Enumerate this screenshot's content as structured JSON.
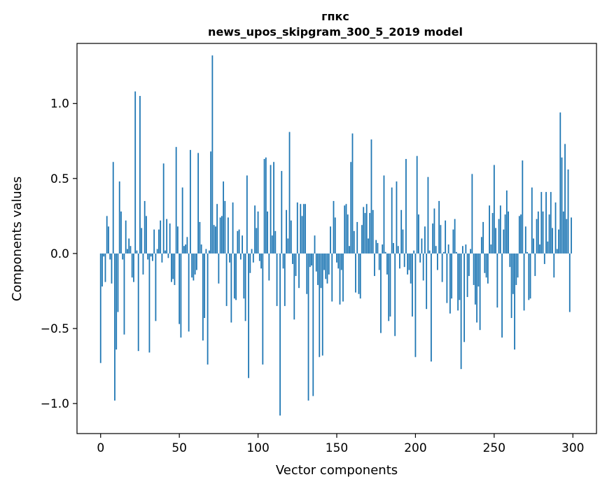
{
  "chart_data": {
    "type": "bar",
    "title_line1": "гпкс",
    "title_line2": "news_upos_skipgram_300_5_2019 model",
    "xlabel": "Vector components",
    "ylabel": "Components values",
    "xlim": [
      -15,
      315
    ],
    "ylim": [
      -1.2,
      1.4
    ],
    "xticks": [
      0,
      50,
      100,
      150,
      200,
      250,
      300
    ],
    "xtick_labels": [
      "0",
      "50",
      "100",
      "150",
      "200",
      "250",
      "300"
    ],
    "yticks": [
      -1.0,
      -0.5,
      0.0,
      0.5,
      1.0
    ],
    "ytick_labels": [
      "−1.0",
      "−0.5",
      "0.0",
      "0.5",
      "1.0"
    ],
    "bar_color": "#1f77b4",
    "grid": false,
    "legend": "none",
    "values": [
      -0.73,
      -0.22,
      -0.02,
      -0.19,
      0.25,
      0.18,
      -0.04,
      -0.2,
      0.61,
      -0.98,
      -0.64,
      -0.39,
      0.48,
      0.28,
      -0.04,
      -0.54,
      0.22,
      0.03,
      0.1,
      0.05,
      -0.16,
      -0.19,
      1.08,
      0.02,
      -0.65,
      1.05,
      0.17,
      -0.14,
      0.35,
      0.25,
      -0.04,
      -0.66,
      -0.02,
      -0.05,
      0.16,
      -0.45,
      0.03,
      0.16,
      0.22,
      -0.06,
      0.6,
      0.02,
      0.23,
      -0.03,
      0.2,
      -0.19,
      -0.17,
      -0.21,
      0.71,
      0.18,
      -0.47,
      -0.56,
      0.44,
      0.05,
      0.06,
      0.11,
      -0.52,
      0.69,
      -0.16,
      -0.18,
      -0.14,
      -0.11,
      0.67,
      0.21,
      0.06,
      -0.58,
      -0.43,
      0.03,
      -0.74,
      0.02,
      0.68,
      1.32,
      0.19,
      0.18,
      0.33,
      -0.2,
      0.24,
      0.25,
      0.48,
      0.35,
      -0.35,
      0.24,
      -0.06,
      -0.46,
      0.34,
      -0.3,
      -0.31,
      0.15,
      0.16,
      -0.04,
      0.12,
      -0.3,
      -0.45,
      0.52,
      -0.83,
      -0.13,
      0.03,
      -0.06,
      0.32,
      0.17,
      0.28,
      -0.05,
      -0.1,
      -0.74,
      0.63,
      0.64,
      0.28,
      -0.18,
      0.59,
      0.12,
      0.61,
      0.15,
      -0.35,
      0.0,
      -1.08,
      0.55,
      -0.1,
      -0.35,
      0.29,
      0.1,
      0.81,
      0.22,
      -0.07,
      -0.44,
      -0.15,
      0.34,
      -0.23,
      0.33,
      0.25,
      0.33,
      0.33,
      -0.27,
      -0.98,
      -0.09,
      -0.08,
      -0.95,
      0.12,
      -0.12,
      -0.21,
      -0.69,
      -0.23,
      -0.68,
      -0.11,
      -0.17,
      -0.2,
      -0.14,
      0.18,
      -0.32,
      0.35,
      0.24,
      -0.06,
      -0.1,
      -0.34,
      -0.11,
      -0.32,
      0.32,
      0.33,
      0.26,
      0.05,
      0.61,
      0.8,
      0.15,
      -0.26,
      0.21,
      -0.27,
      -0.3,
      0.19,
      0.31,
      0.27,
      0.33,
      0.1,
      0.27,
      0.76,
      0.29,
      -0.15,
      0.09,
      0.07,
      -0.11,
      -0.53,
      0.06,
      0.52,
      0.01,
      -0.14,
      -0.45,
      -0.42,
      0.44,
      0.07,
      -0.55,
      0.48,
      0.05,
      -0.1,
      0.29,
      0.16,
      -0.09,
      0.63,
      -0.14,
      -0.11,
      -0.2,
      -0.42,
      0.02,
      -0.69,
      0.65,
      0.26,
      -0.06,
      0.1,
      -0.18,
      0.18,
      -0.37,
      0.51,
      0.02,
      -0.72,
      0.2,
      0.3,
      0.05,
      -0.11,
      0.35,
      0.19,
      -0.19,
      0.01,
      0.22,
      -0.33,
      0.06,
      -0.4,
      -0.3,
      0.16,
      0.23,
      0.01,
      -0.38,
      -0.31,
      -0.77,
      0.05,
      -0.59,
      0.06,
      -0.29,
      -0.15,
      0.03,
      0.53,
      -0.21,
      -0.34,
      -0.46,
      -0.22,
      -0.51,
      0.11,
      0.21,
      -0.13,
      -0.16,
      -0.2,
      0.32,
      0.06,
      0.27,
      0.59,
      0.17,
      -0.36,
      0.23,
      0.32,
      -0.56,
      0.16,
      0.26,
      0.42,
      0.28,
      -0.09,
      -0.43,
      -0.27,
      -0.64,
      -0.21,
      -0.16,
      0.25,
      0.26,
      0.62,
      -0.38,
      0.18,
      0.01,
      -0.31,
      -0.3,
      0.44,
      0.1,
      -0.15,
      0.23,
      0.28,
      0.06,
      0.41,
      0.28,
      -0.07,
      0.41,
      0.08,
      0.26,
      0.41,
      0.17,
      -0.16,
      0.34,
      0.03,
      0.16,
      0.94,
      0.64,
      0.28,
      0.73,
      0.23,
      0.56,
      -0.39,
      0.24
    ]
  }
}
